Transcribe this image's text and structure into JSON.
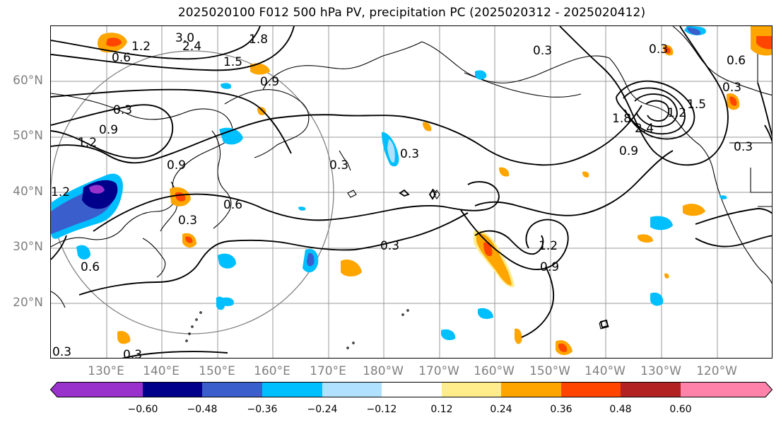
{
  "title": "2025020100 F012 500 hPa PV, precipitation PC (2025020312 - 2025020412)",
  "map": {
    "lat_labels": [
      "60°N",
      "50°N",
      "40°N",
      "30°N",
      "20°N"
    ],
    "lon_labels": [
      "130°E",
      "140°E",
      "150°E",
      "160°E",
      "170°E",
      "180°W",
      "170°W",
      "160°W",
      "150°W",
      "140°W",
      "130°W",
      "120°W"
    ],
    "contour_labels": [
      "3.0",
      "2.4",
      "1.8",
      "1.2",
      "0.6",
      "1.5",
      "0.9",
      "0.3",
      "0.3",
      "1.2",
      "0.9",
      "0.9",
      "0.6",
      "0.3",
      "0.3",
      "0.3",
      "0.3",
      "0.3",
      "0.3",
      "1.2",
      "0.9",
      "1.8",
      "2.4",
      "1.2",
      "0.9",
      "1.5",
      "0.6",
      "0.3",
      "0.3",
      "0.6",
      "1.2",
      "0.3"
    ]
  },
  "colorbar": {
    "ticks": [
      "−0.60",
      "−0.48",
      "−0.36",
      "−0.24",
      "−0.12",
      "0.12",
      "0.24",
      "0.36",
      "0.48",
      "0.60"
    ],
    "colors": [
      "#9932cc",
      "#00008b",
      "#3a5fcd",
      "#00bfff",
      "#b0e2ff",
      "#ffffff",
      "#ffec8b",
      "#ffa500",
      "#ff4500",
      "#b22222",
      "#ff82ab"
    ]
  }
}
